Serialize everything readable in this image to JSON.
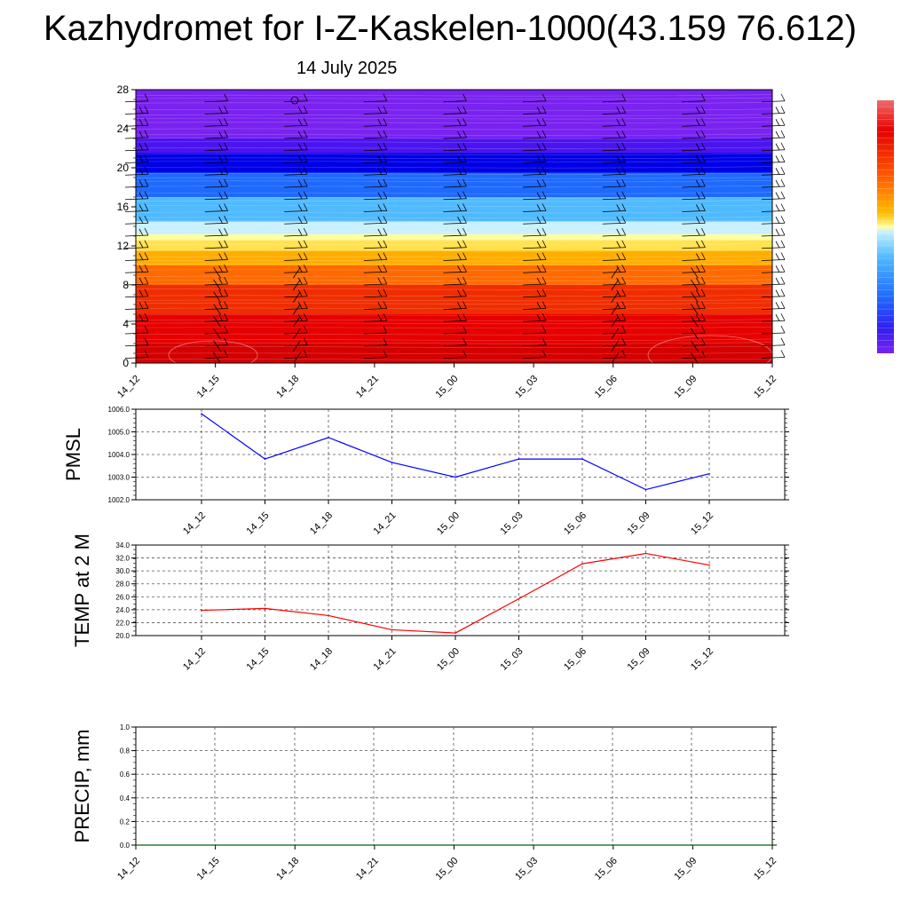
{
  "title": "Kazhydromet for I-Z-Kaskelen-1000(43.159 76.612)",
  "date": "14 July 2025",
  "colors": {
    "pmsl_line": "#0000ff",
    "temp_line": "#ff0000",
    "precip_line": "#006400",
    "grid": "#555555",
    "section_top": "#7a22f0",
    "section_mid_blue": "#1e6aff",
    "section_yellow": "#ffff9e",
    "section_red": "#e60000"
  },
  "icons": [
    "wind-barb-icon",
    "circle-marker-icon"
  ],
  "chart_data": [
    {
      "type": "heatmap",
      "name": "cross-section",
      "title": "",
      "xlabel": "",
      "ylabel": "",
      "x_ticks": [
        "14_12",
        "14_15",
        "14_18",
        "14_21",
        "15_00",
        "15_03",
        "15_06",
        "15_09",
        "15_12"
      ],
      "y_ticks": [
        "0",
        "4",
        "8",
        "12",
        "16",
        "20",
        "24",
        "28"
      ],
      "ylim": [
        0,
        28
      ],
      "colorbar": "purple-blue-cyan-yellow-red",
      "color_bands": [
        {
          "from": 0,
          "to": 2,
          "color": "#d40000"
        },
        {
          "from": 2,
          "to": 5,
          "color": "#e60000"
        },
        {
          "from": 5,
          "to": 8,
          "color": "#f02d00"
        },
        {
          "from": 8,
          "to": 10,
          "color": "#ff6a00"
        },
        {
          "from": 10,
          "to": 11.5,
          "color": "#ffae00"
        },
        {
          "from": 11.5,
          "to": 12.6,
          "color": "#ffe24d"
        },
        {
          "from": 12.6,
          "to": 13.2,
          "color": "#ffffa0"
        },
        {
          "from": 13.2,
          "to": 14.5,
          "color": "#c8f0ff"
        },
        {
          "from": 14.5,
          "to": 17,
          "color": "#4fbaff"
        },
        {
          "from": 17,
          "to": 19.5,
          "color": "#1e6aff"
        },
        {
          "from": 19.5,
          "to": 21.5,
          "color": "#0000e6"
        },
        {
          "from": 21.5,
          "to": 23,
          "color": "#4b14ef"
        },
        {
          "from": 23,
          "to": 28,
          "color": "#7a22f0"
        }
      ]
    },
    {
      "type": "line",
      "name": "PMSL",
      "ylabel": "PMSL",
      "categories": [
        "14_12",
        "14_15",
        "14_18",
        "14_21",
        "15_00",
        "15_03",
        "15_06",
        "15_09",
        "15_12"
      ],
      "values": [
        1005.8,
        1003.8,
        1004.75,
        1003.65,
        1003.0,
        1003.8,
        1003.8,
        1002.45,
        1003.15
      ],
      "y_ticks": [
        "1002.0",
        "1003.0",
        "1004.0",
        "1005.0",
        "1006.0"
      ],
      "ylim": [
        1002.0,
        1006.0
      ],
      "grid": true
    },
    {
      "type": "line",
      "name": "TEMP",
      "ylabel": "TEMP at 2 M",
      "categories": [
        "14_12",
        "14_15",
        "14_18",
        "14_21",
        "15_00",
        "15_03",
        "15_06",
        "15_09",
        "15_12"
      ],
      "values": [
        23.9,
        24.2,
        23.1,
        20.9,
        20.4,
        25.7,
        31.1,
        32.7,
        30.9
      ],
      "y_ticks": [
        "20.0",
        "22.0",
        "24.0",
        "26.0",
        "28.0",
        "30.0",
        "32.0",
        "34.0"
      ],
      "ylim": [
        20.0,
        34.0
      ],
      "grid": true
    },
    {
      "type": "line",
      "name": "PRECIP",
      "ylabel": "PRECIP, mm",
      "x_ticks": [
        "14_12",
        "14_15",
        "14_18",
        "14_21",
        "15_00",
        "15_03",
        "15_06",
        "15_09",
        "15_12"
      ],
      "values": [
        0,
        0,
        0,
        0,
        0,
        0,
        0,
        0,
        0
      ],
      "y_ticks": [
        "0.0",
        "0.2",
        "0.4",
        "0.6",
        "0.8",
        "1.0"
      ],
      "ylim": [
        0.0,
        1.0
      ],
      "grid": true
    }
  ]
}
